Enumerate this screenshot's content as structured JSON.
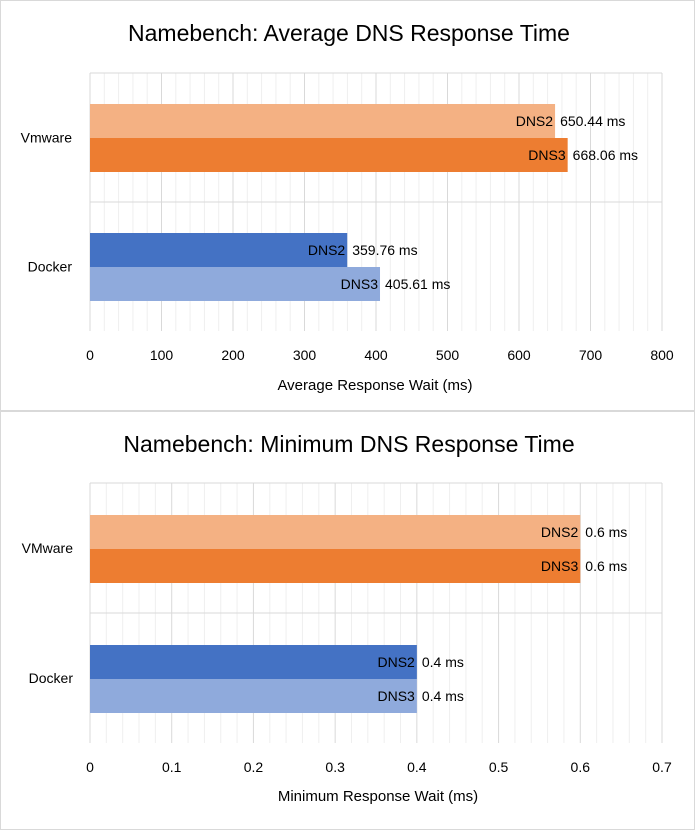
{
  "chart_data": [
    {
      "type": "bar",
      "orientation": "horizontal",
      "title": "Namebench: Average DNS Response Time",
      "xlabel": "Average Response Wait (ms)",
      "ylabel": "",
      "categories": [
        "Vmware",
        "Docker"
      ],
      "xlim": [
        0,
        800
      ],
      "ticks": [
        0,
        100,
        200,
        300,
        400,
        500,
        600,
        700,
        800
      ],
      "tick_labels": [
        "0",
        "100",
        "200",
        "300",
        "400",
        "500",
        "600",
        "700",
        "800"
      ],
      "grid": true,
      "legend": "none",
      "series": [
        {
          "name": "DNS2",
          "values": [
            650.44,
            359.76
          ],
          "value_labels": [
            "650.44 ms",
            "359.76 ms"
          ],
          "colors": [
            "#F4B183",
            "#4472C4"
          ]
        },
        {
          "name": "DNS3",
          "values": [
            668.06,
            405.61
          ],
          "value_labels": [
            "668.06 ms",
            "405.61 ms"
          ],
          "colors": [
            "#ED7D31",
            "#8FAADC"
          ]
        }
      ]
    },
    {
      "type": "bar",
      "orientation": "horizontal",
      "title": "Namebench: Minimum DNS Response Time",
      "xlabel": "Minimum Response Wait (ms)",
      "ylabel": "",
      "categories": [
        "VMware",
        "Docker"
      ],
      "xlim": [
        0,
        0.7
      ],
      "ticks": [
        0,
        0.1,
        0.2,
        0.3,
        0.4,
        0.5,
        0.6,
        0.7
      ],
      "tick_labels": [
        "0",
        "0.1",
        "0.2",
        "0.3",
        "0.4",
        "0.5",
        "0.6",
        "0.7"
      ],
      "grid": true,
      "legend": "none",
      "series": [
        {
          "name": "DNS2",
          "values": [
            0.6,
            0.4
          ],
          "value_labels": [
            "0.6 ms",
            "0.4 ms"
          ],
          "colors": [
            "#F4B183",
            "#4472C4"
          ]
        },
        {
          "name": "DNS3",
          "values": [
            0.6,
            0.4
          ],
          "value_labels": [
            "0.6 ms",
            "0.4 ms"
          ],
          "colors": [
            "#ED7D31",
            "#8FAADC"
          ]
        }
      ]
    }
  ]
}
